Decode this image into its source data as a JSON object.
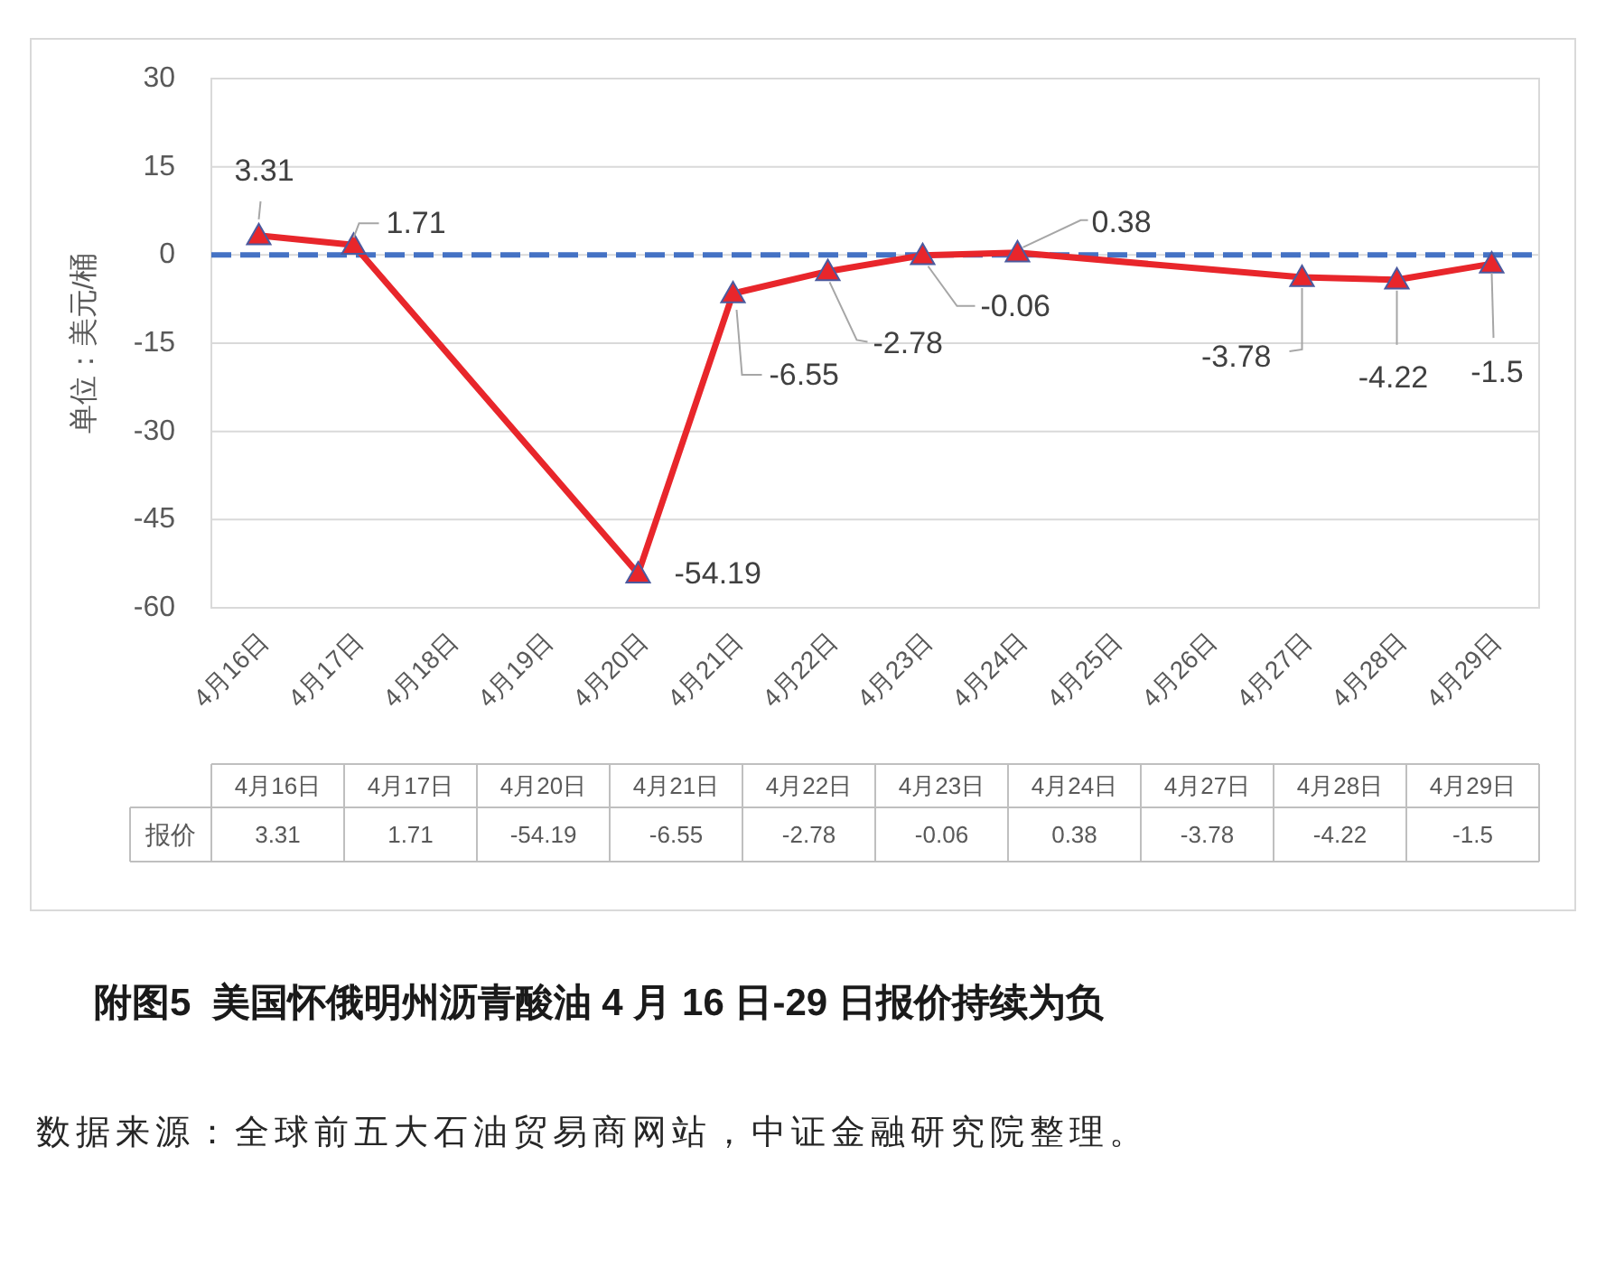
{
  "chart_data": [
    {
      "type": "line",
      "title": "附图5  美国怀俄明州沥青酸油 4 月 16 日-29 日报价持续为负",
      "ylabel": "单位：美元/桶",
      "x": [
        "--04-16",
        "--04-17",
        "--04-20",
        "--04-21",
        "--04-22",
        "--04-23",
        "--04-24",
        "--04-27",
        "--04-28",
        "--04-29"
      ],
      "series": [
        {
          "color": "#e8262b",
          "values": [
            3.31,
            1.71,
            -54.19,
            -6.55,
            -2.78,
            -0.06,
            0.38,
            -3.78,
            -4.22,
            -1.5
          ]
        }
      ],
      "xlim": [
        "--04-15T12:00",
        "--04-29T12:00"
      ],
      "xticks": [
        {
          "value": "--04-16",
          "label": "4月16日"
        },
        {
          "value": "--04-17",
          "label": "4月17日"
        },
        {
          "value": "--04-18",
          "label": "4月18日"
        },
        {
          "value": "--04-19",
          "label": "4月19日"
        },
        {
          "value": "--04-20",
          "label": "4月20日"
        },
        {
          "value": "--04-21",
          "label": "4月21日"
        },
        {
          "value": "--04-22",
          "label": "4月22日"
        },
        {
          "value": "--04-23",
          "label": "4月23日"
        },
        {
          "value": "--04-24",
          "label": "4月24日"
        },
        {
          "value": "--04-25",
          "label": "4月25日"
        },
        {
          "value": "--04-26",
          "label": "4月26日"
        },
        {
          "value": "--04-27",
          "label": "4月27日"
        },
        {
          "value": "--04-28",
          "label": "4月28日"
        },
        {
          "value": "--04-29",
          "label": "4月29日"
        }
      ],
      "ylim": [
        -60,
        30
      ],
      "yticks": [
        -60,
        -45,
        -30,
        -15,
        0,
        15,
        30
      ],
      "grid": "y",
      "marker": "triangle",
      "data_labels": true,
      "ref_lines": [
        {
          "axis": "y",
          "value": 0,
          "color": "#4472c4",
          "line_style": "dashed"
        }
      ],
      "annotations": [
        "数据来源：全球前五大石油贸易商网站，中证金融研究院整理。"
      ]
    },
    {
      "type": "other",
      "categories": [
        "4月16日",
        "4月17日",
        "4月20日",
        "4月21日",
        "4月22日",
        "4月23日",
        "4月24日",
        "4月27日",
        "4月28日",
        "4月29日"
      ],
      "series": [
        {
          "name": "报价",
          "values": [
            3.31,
            1.71,
            -54.19,
            -6.55,
            -2.78,
            -0.06,
            0.38,
            -3.78,
            -4.22,
            -1.5
          ]
        }
      ],
      "data_labels": true
    }
  ]
}
